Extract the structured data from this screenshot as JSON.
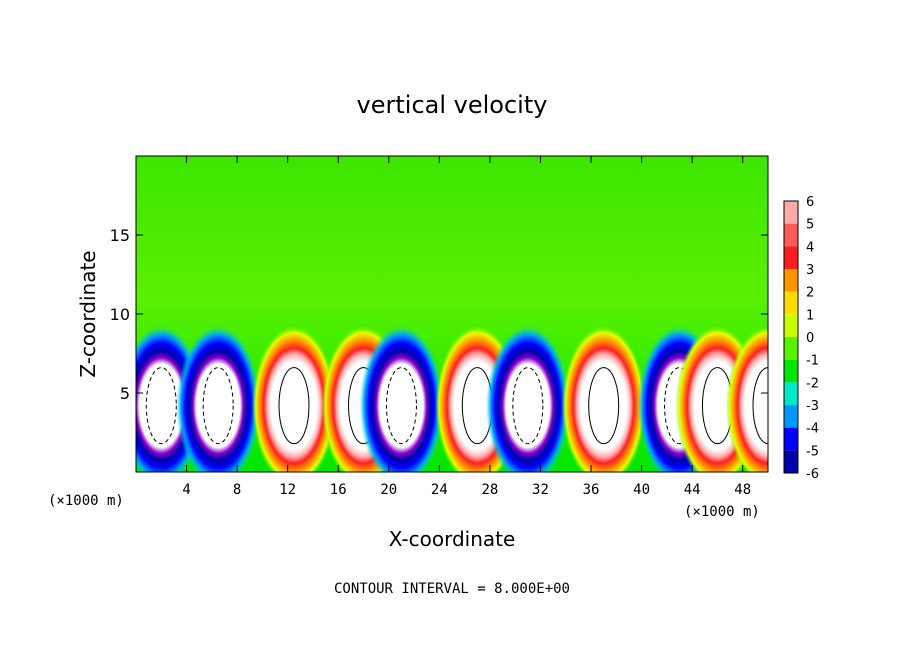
{
  "chart_data": {
    "type": "heatmap",
    "title": "vertical velocity",
    "xlabel": "X-coordinate",
    "ylabel": "Z-coordinate",
    "x_unit": "(×1000 m)",
    "x_unit_right": "(×1000 m)",
    "xlim": [
      0,
      50
    ],
    "ylim": [
      0,
      20
    ],
    "x_ticks": [
      4,
      8,
      12,
      16,
      20,
      24,
      28,
      32,
      36,
      40,
      44,
      48
    ],
    "y_ticks": [
      5,
      10,
      15
    ],
    "colorbar": {
      "levels": [
        6,
        5,
        4,
        3,
        2,
        1,
        0,
        -1,
        -2,
        -3,
        -4,
        -5,
        -6
      ],
      "colors": [
        "#ffaaaa",
        "#ff5a5a",
        "#ff1e1e",
        "#ff9600",
        "#ffdd00",
        "#c8ff00",
        "#5af000",
        "#00e600",
        "#00e6c8",
        "#0096ff",
        "#0000ff",
        "#0000aa",
        "#8800cc"
      ]
    },
    "footer": "CONTOUR INTERVAL = 8.000E+00",
    "cells": [
      {
        "x": 2,
        "sign": "down",
        "peak": -6
      },
      {
        "x": 6.5,
        "sign": "down",
        "peak": -6
      },
      {
        "x": 12.5,
        "sign": "up",
        "peak": 6
      },
      {
        "x": 18,
        "sign": "up",
        "peak": 6
      },
      {
        "x": 21,
        "sign": "down",
        "peak": -6
      },
      {
        "x": 27,
        "sign": "up",
        "peak": 6
      },
      {
        "x": 31,
        "sign": "down",
        "peak": -6
      },
      {
        "x": 37,
        "sign": "up",
        "peak": 6
      },
      {
        "x": 43,
        "sign": "down",
        "peak": -6
      },
      {
        "x": 46,
        "sign": "up",
        "peak": 6
      },
      {
        "x": 50,
        "sign": "up",
        "peak": 6
      }
    ]
  }
}
